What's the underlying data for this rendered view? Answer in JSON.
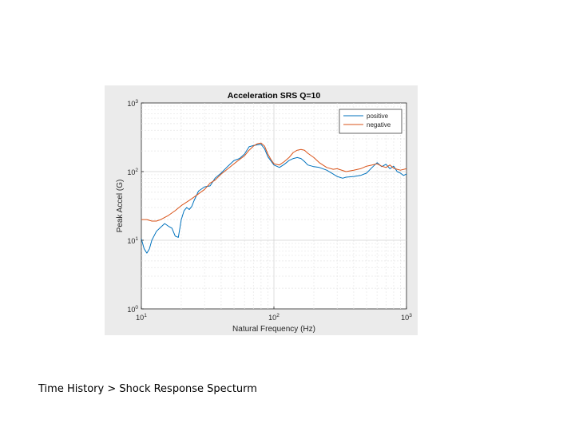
{
  "slide": {
    "caption": "Time History > Shock Response Specturm"
  },
  "chart_data": {
    "type": "line",
    "title": "Acceleration SRS Q=10",
    "xlabel": "Natural Frequency (Hz)",
    "ylabel": "Peak Accel (G)",
    "xscale": "log",
    "yscale": "log",
    "xlim": [
      10,
      1000
    ],
    "ylim": [
      1,
      1000
    ],
    "x_ticks": [
      {
        "base": "10",
        "exp": "1"
      },
      {
        "base": "10",
        "exp": "2"
      },
      {
        "base": "10",
        "exp": "3"
      }
    ],
    "y_ticks": [
      {
        "base": "10",
        "exp": "0"
      },
      {
        "base": "10",
        "exp": "1"
      },
      {
        "base": "10",
        "exp": "2"
      },
      {
        "base": "10",
        "exp": "3"
      }
    ],
    "grid": true,
    "legend": "top-right",
    "series": [
      {
        "name": "positive",
        "color": "#0072bd",
        "points": [
          [
            10,
            10.5
          ],
          [
            10.5,
            7.5
          ],
          [
            11,
            6.5
          ],
          [
            11.5,
            7.5
          ],
          [
            12,
            10
          ],
          [
            13,
            13.5
          ],
          [
            14,
            15.5
          ],
          [
            15,
            17.5
          ],
          [
            16,
            16
          ],
          [
            17,
            15
          ],
          [
            18,
            11.5
          ],
          [
            19,
            11
          ],
          [
            20,
            20
          ],
          [
            21,
            27
          ],
          [
            22,
            30
          ],
          [
            23,
            28
          ],
          [
            24,
            31
          ],
          [
            25,
            38
          ],
          [
            27,
            52
          ],
          [
            30,
            60
          ],
          [
            33,
            62
          ],
          [
            36,
            80
          ],
          [
            40,
            95
          ],
          [
            45,
            120
          ],
          [
            50,
            145
          ],
          [
            55,
            155
          ],
          [
            60,
            180
          ],
          [
            65,
            230
          ],
          [
            70,
            240
          ],
          [
            75,
            245
          ],
          [
            80,
            250
          ],
          [
            85,
            215
          ],
          [
            90,
            165
          ],
          [
            100,
            125
          ],
          [
            110,
            115
          ],
          [
            120,
            128
          ],
          [
            130,
            145
          ],
          [
            140,
            155
          ],
          [
            150,
            160
          ],
          [
            160,
            155
          ],
          [
            170,
            140
          ],
          [
            180,
            125
          ],
          [
            200,
            118
          ],
          [
            220,
            115
          ],
          [
            250,
            105
          ],
          [
            280,
            92
          ],
          [
            300,
            85
          ],
          [
            330,
            80
          ],
          [
            350,
            83
          ],
          [
            400,
            85
          ],
          [
            450,
            88
          ],
          [
            500,
            95
          ],
          [
            550,
            115
          ],
          [
            600,
            135
          ],
          [
            650,
            118
          ],
          [
            700,
            128
          ],
          [
            750,
            110
          ],
          [
            800,
            120
          ],
          [
            850,
            100
          ],
          [
            900,
            95
          ],
          [
            950,
            88
          ],
          [
            1000,
            92
          ]
        ]
      },
      {
        "name": "negative",
        "color": "#d95319",
        "points": [
          [
            10,
            20
          ],
          [
            11,
            20
          ],
          [
            12,
            19
          ],
          [
            13,
            19
          ],
          [
            14,
            20
          ],
          [
            16,
            23
          ],
          [
            18,
            27
          ],
          [
            20,
            32
          ],
          [
            23,
            38
          ],
          [
            26,
            45
          ],
          [
            30,
            55
          ],
          [
            33,
            68
          ],
          [
            36,
            75
          ],
          [
            40,
            92
          ],
          [
            45,
            110
          ],
          [
            50,
            130
          ],
          [
            55,
            150
          ],
          [
            60,
            170
          ],
          [
            65,
            205
          ],
          [
            70,
            235
          ],
          [
            75,
            255
          ],
          [
            80,
            260
          ],
          [
            85,
            235
          ],
          [
            90,
            180
          ],
          [
            95,
            150
          ],
          [
            100,
            130
          ],
          [
            110,
            125
          ],
          [
            120,
            140
          ],
          [
            130,
            160
          ],
          [
            140,
            190
          ],
          [
            150,
            205
          ],
          [
            160,
            210
          ],
          [
            170,
            205
          ],
          [
            180,
            185
          ],
          [
            200,
            160
          ],
          [
            220,
            135
          ],
          [
            250,
            115
          ],
          [
            280,
            108
          ],
          [
            300,
            110
          ],
          [
            350,
            100
          ],
          [
            400,
            105
          ],
          [
            450,
            110
          ],
          [
            500,
            120
          ],
          [
            550,
            125
          ],
          [
            600,
            130
          ],
          [
            650,
            120
          ],
          [
            700,
            115
          ],
          [
            750,
            125
          ],
          [
            800,
            112
          ],
          [
            850,
            108
          ],
          [
            900,
            105
          ],
          [
            1000,
            110
          ]
        ]
      }
    ]
  }
}
